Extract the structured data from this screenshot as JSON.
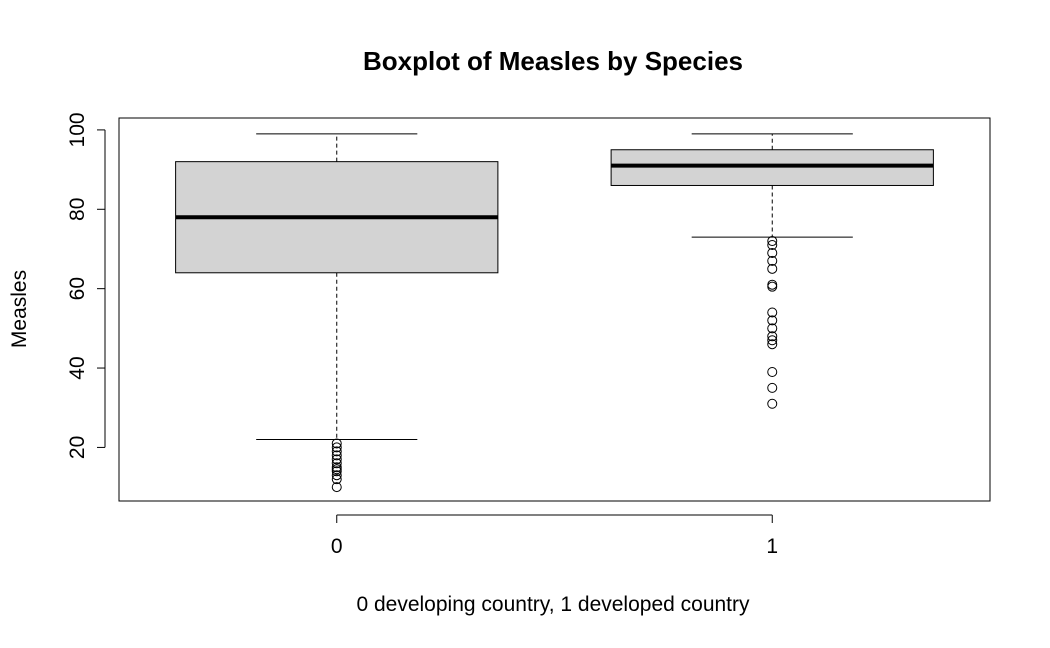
{
  "chart_data": {
    "type": "boxplot",
    "title": "Boxplot of Measles by Species",
    "xlabel": "0 developing country, 1 developed country",
    "ylabel": "Measles",
    "ylim": [
      6.5,
      103
    ],
    "yticks": [
      20,
      40,
      60,
      80,
      100
    ],
    "grid": false,
    "legend": "none",
    "box_fill": "#d3d3d3",
    "categories": [
      "0",
      "1"
    ],
    "boxes": [
      {
        "category": "0",
        "whisker_low": 22,
        "q1": 64,
        "median": 78,
        "q3": 92,
        "whisker_high": 99,
        "outliers": [
          21,
          20,
          19,
          18,
          17,
          16,
          15,
          14.5,
          14,
          13,
          12,
          10
        ]
      },
      {
        "category": "1",
        "whisker_low": 73,
        "q1": 86,
        "median": 91,
        "q3": 95,
        "whisker_high": 99,
        "outliers": [
          72,
          71,
          69,
          67,
          65,
          61,
          60.5,
          54,
          52,
          50,
          48,
          47,
          46,
          39,
          35,
          31
        ]
      }
    ]
  }
}
